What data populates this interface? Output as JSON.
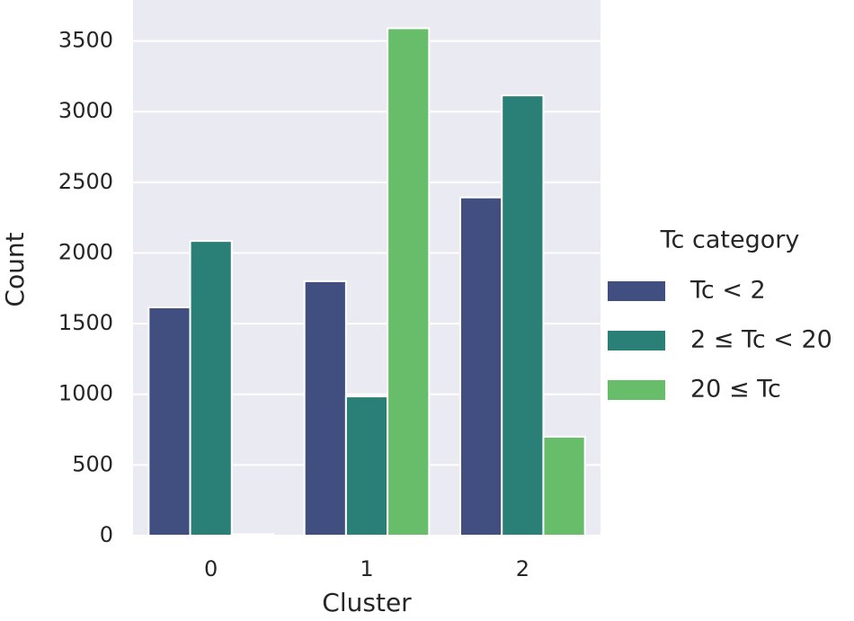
{
  "chart_data": {
    "type": "bar",
    "x_label": "Cluster",
    "y_label": "Count",
    "categories": [
      "0",
      "1",
      "2"
    ],
    "legend_title": "Tc category",
    "series": [
      {
        "name": "Tc < 2",
        "color": "#414e80",
        "values": [
          1615,
          1800,
          2393
        ]
      },
      {
        "name": "2 ≤ Tc < 20",
        "color": "#2a7f77",
        "values": [
          2085,
          985,
          3115
        ]
      },
      {
        "name": "20 ≤ Tc",
        "color": "#67bd69",
        "values": [
          10,
          3590,
          700
        ]
      }
    ],
    "ylim": [
      0,
      3790
    ],
    "yticks": [
      0,
      500,
      1000,
      1500,
      2000,
      2500,
      3000,
      3500
    ],
    "grid": true,
    "legend": "right",
    "background": "#eaeaf2"
  }
}
